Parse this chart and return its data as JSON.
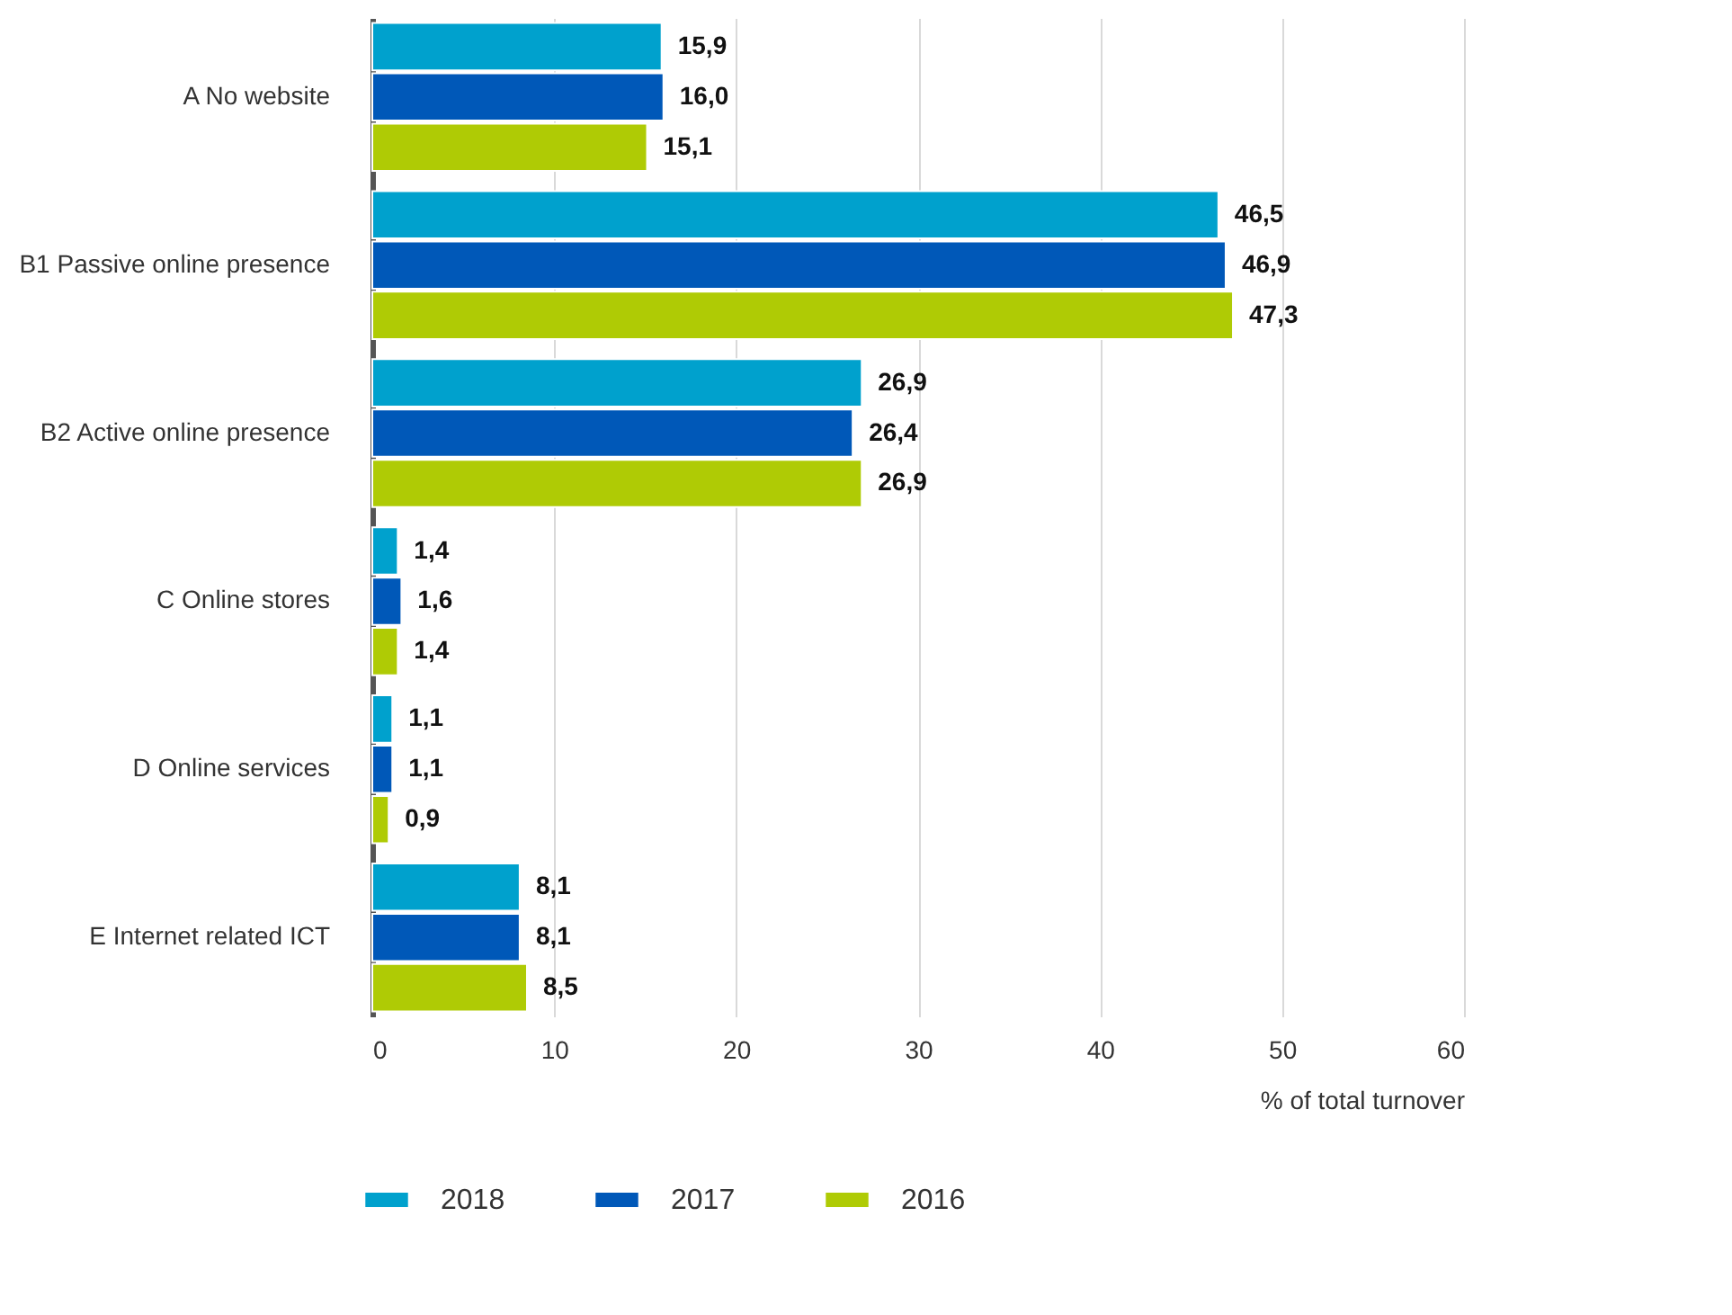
{
  "chart_data": {
    "type": "bar",
    "orientation": "horizontal",
    "xlabel": "% of total turnover",
    "categories": [
      "A No website",
      "B1 Passive online presence",
      "B2 Active online presence",
      "C Online stores",
      "D Online services",
      "E Internet related ICT"
    ],
    "series": [
      {
        "name": "2018",
        "color": "#00a1cd",
        "values": [
          15.9,
          46.5,
          26.9,
          1.4,
          1.1,
          8.1
        ],
        "value_labels": [
          "15,9",
          "46,5",
          "26,9",
          "1,4",
          "1,1",
          "8,1"
        ]
      },
      {
        "name": "2017",
        "color": "#0058b8",
        "values": [
          16.0,
          46.9,
          26.4,
          1.6,
          1.1,
          8.1
        ],
        "value_labels": [
          "16,0",
          "46,9",
          "26,4",
          "1,6",
          "1,1",
          "8,1"
        ]
      },
      {
        "name": "2016",
        "color": "#afcb05",
        "values": [
          15.1,
          47.3,
          26.9,
          1.4,
          0.9,
          8.5
        ],
        "value_labels": [
          "15,1",
          "47,3",
          "26,9",
          "1,4",
          "0,9",
          "8,5"
        ]
      }
    ],
    "xlim": [
      0,
      60
    ],
    "xticks": [
      0,
      10,
      20,
      30,
      40,
      50,
      60
    ],
    "grid": "x",
    "legend": "bottom"
  }
}
